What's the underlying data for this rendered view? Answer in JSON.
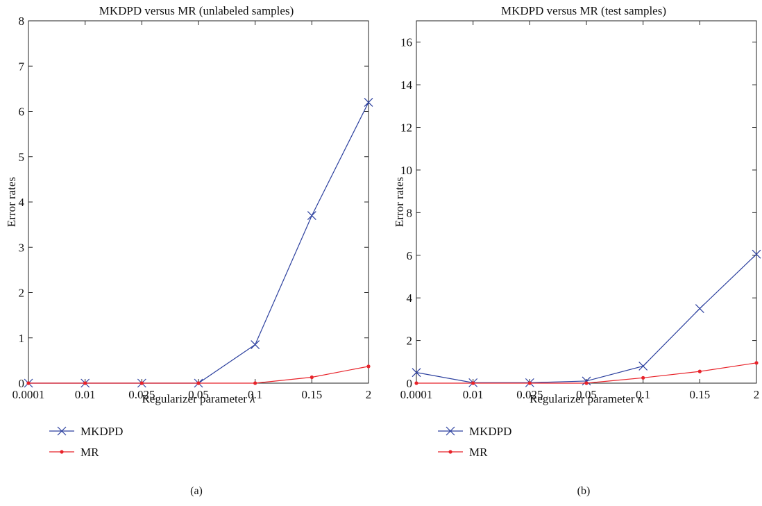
{
  "chart_data": [
    {
      "type": "line",
      "title": "MKDPD versus MR (unlabeled samples)",
      "xlabel": "Regularizer parameter",
      "xlabel_symbol": "λ",
      "ylabel": "Error rates",
      "categories": [
        "0.0001",
        "0.01",
        "0.025",
        "0.05",
        "0.1",
        "0.15",
        "2"
      ],
      "ylim": [
        0,
        8
      ],
      "yticks": [
        0,
        1,
        2,
        3,
        4,
        5,
        6,
        7,
        8
      ],
      "grid": false,
      "legend_position": "bottom-left",
      "caption": "(a)",
      "series": [
        {
          "name": "MKDPD",
          "color": "#2b3f9e",
          "marker": "x",
          "values": [
            0,
            0,
            0,
            0,
            0.85,
            3.7,
            6.2
          ]
        },
        {
          "name": "MR",
          "color": "#e8232a",
          "marker": "dot",
          "values": [
            0,
            0,
            0,
            0,
            0,
            0.13,
            0.37
          ]
        }
      ]
    },
    {
      "type": "line",
      "title": "MKDPD versus MR (test samples)",
      "xlabel": "Regularizer parameter",
      "xlabel_symbol": "κ",
      "ylabel": "Error rates",
      "categories": [
        "0.0001",
        "0.01",
        "0.025",
        "0.05",
        "0.1",
        "0.15",
        "2"
      ],
      "ylim": [
        0,
        17
      ],
      "yticks": [
        0,
        2,
        4,
        6,
        8,
        10,
        12,
        14,
        16
      ],
      "grid": false,
      "legend_position": "bottom-left",
      "caption": "(b)",
      "series": [
        {
          "name": "MKDPD",
          "color": "#2b3f9e",
          "marker": "x",
          "values": [
            0.5,
            0.02,
            0.02,
            0.1,
            0.8,
            3.5,
            6.05
          ]
        },
        {
          "name": "MR",
          "color": "#e8232a",
          "marker": "dot",
          "values": [
            0,
            0,
            0,
            0,
            0.25,
            0.55,
            0.95
          ]
        }
      ]
    }
  ]
}
